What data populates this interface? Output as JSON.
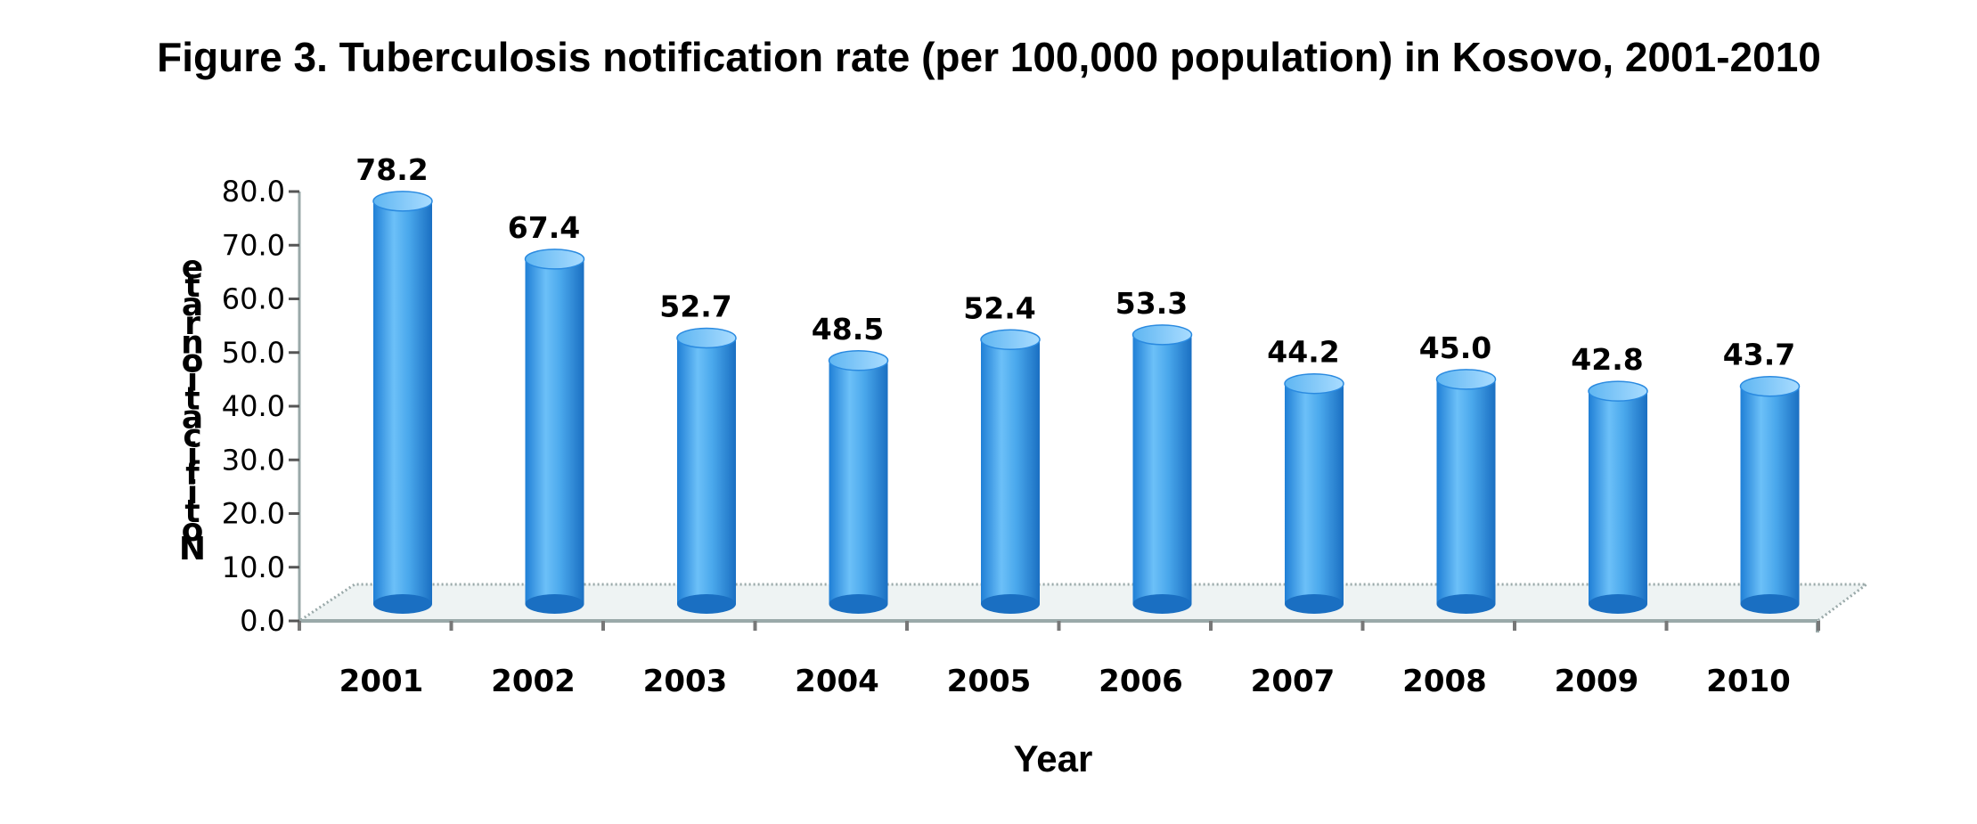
{
  "chart_data": {
    "type": "bar",
    "title": "Figure 3. Tuberculosis notification rate (per 100,000 population) in Kosovo, 2001-2010",
    "xlabel": "Year",
    "ylabel": "Notification rate",
    "categories": [
      "2001",
      "2002",
      "2003",
      "2004",
      "2005",
      "2006",
      "2007",
      "2008",
      "2009",
      "2010"
    ],
    "values": [
      78.2,
      67.4,
      52.7,
      48.5,
      52.4,
      53.3,
      44.2,
      45.0,
      42.8,
      43.7
    ],
    "value_labels": [
      "78.2",
      "67.4",
      "52.7",
      "48.5",
      "52.4",
      "53.3",
      "44.2",
      "45.0",
      "42.8",
      "43.7"
    ],
    "y_ticks": [
      "0.0",
      "10.0",
      "20.0",
      "30.0",
      "40.0",
      "50.0",
      "60.0",
      "70.0",
      "80.0"
    ],
    "ylim": [
      0,
      80
    ],
    "grid": false,
    "legend": "none",
    "style": "3d-cylinder",
    "colors": {
      "bar": "#4aa8ec",
      "bar_dark": "#1f7fd6",
      "bar_light": "#8fd0ff",
      "axis": "#9aa9a9"
    }
  }
}
